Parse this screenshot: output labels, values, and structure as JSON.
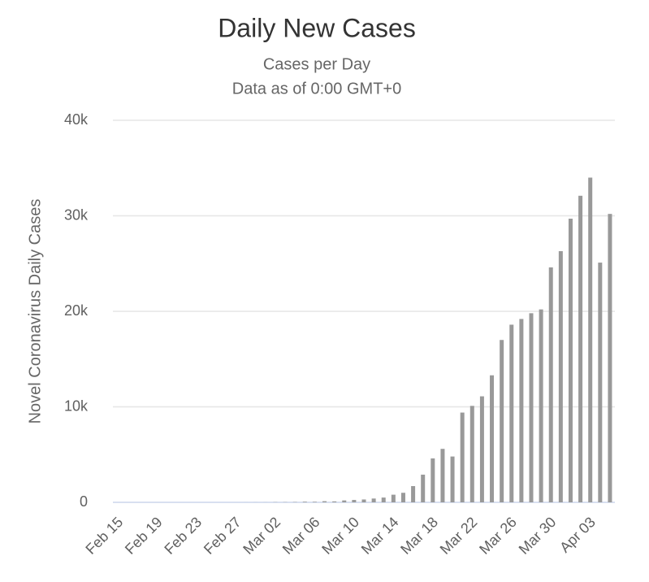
{
  "chart_data": {
    "type": "bar",
    "title": "Daily New Cases",
    "subtitle": [
      "Cases per Day",
      "Data as of 0:00 GMT+0"
    ],
    "y_label": "Novel Coronavirus Daily Cases",
    "categories": [
      "Feb 15",
      null,
      null,
      null,
      "Feb 19",
      null,
      null,
      null,
      "Feb 23",
      null,
      null,
      null,
      "Feb 27",
      null,
      null,
      null,
      "Mar 02",
      null,
      null,
      null,
      "Mar 06",
      null,
      null,
      null,
      "Mar 10",
      null,
      null,
      null,
      "Mar 14",
      null,
      null,
      null,
      "Mar 18",
      null,
      null,
      null,
      "Mar 22",
      null,
      null,
      null,
      "Mar 26",
      null,
      null,
      null,
      "Mar 30",
      null,
      null,
      null,
      "Apr 03",
      null,
      null
    ],
    "values": [
      0,
      0,
      0,
      0,
      1,
      0,
      0,
      0,
      0,
      0,
      0,
      0,
      1,
      3,
      5,
      6,
      20,
      22,
      33,
      70,
      60,
      120,
      100,
      200,
      250,
      300,
      400,
      500,
      800,
      1000,
      1700,
      2900,
      4600,
      5600,
      4800,
      9400,
      10100,
      11100,
      13300,
      17000,
      18600,
      19200,
      19800,
      20200,
      24600,
      26300,
      29700,
      32100,
      34000,
      25100,
      30200
    ],
    "color": "#999999",
    "ylim": [
      0,
      40000
    ],
    "yticks": [
      0,
      {
        "value": 10000,
        "label": "10k"
      },
      {
        "value": 20000,
        "label": "20k"
      },
      {
        "value": 30000,
        "label": "30k"
      },
      {
        "value": 40000,
        "label": "40k"
      }
    ],
    "grid": true
  }
}
